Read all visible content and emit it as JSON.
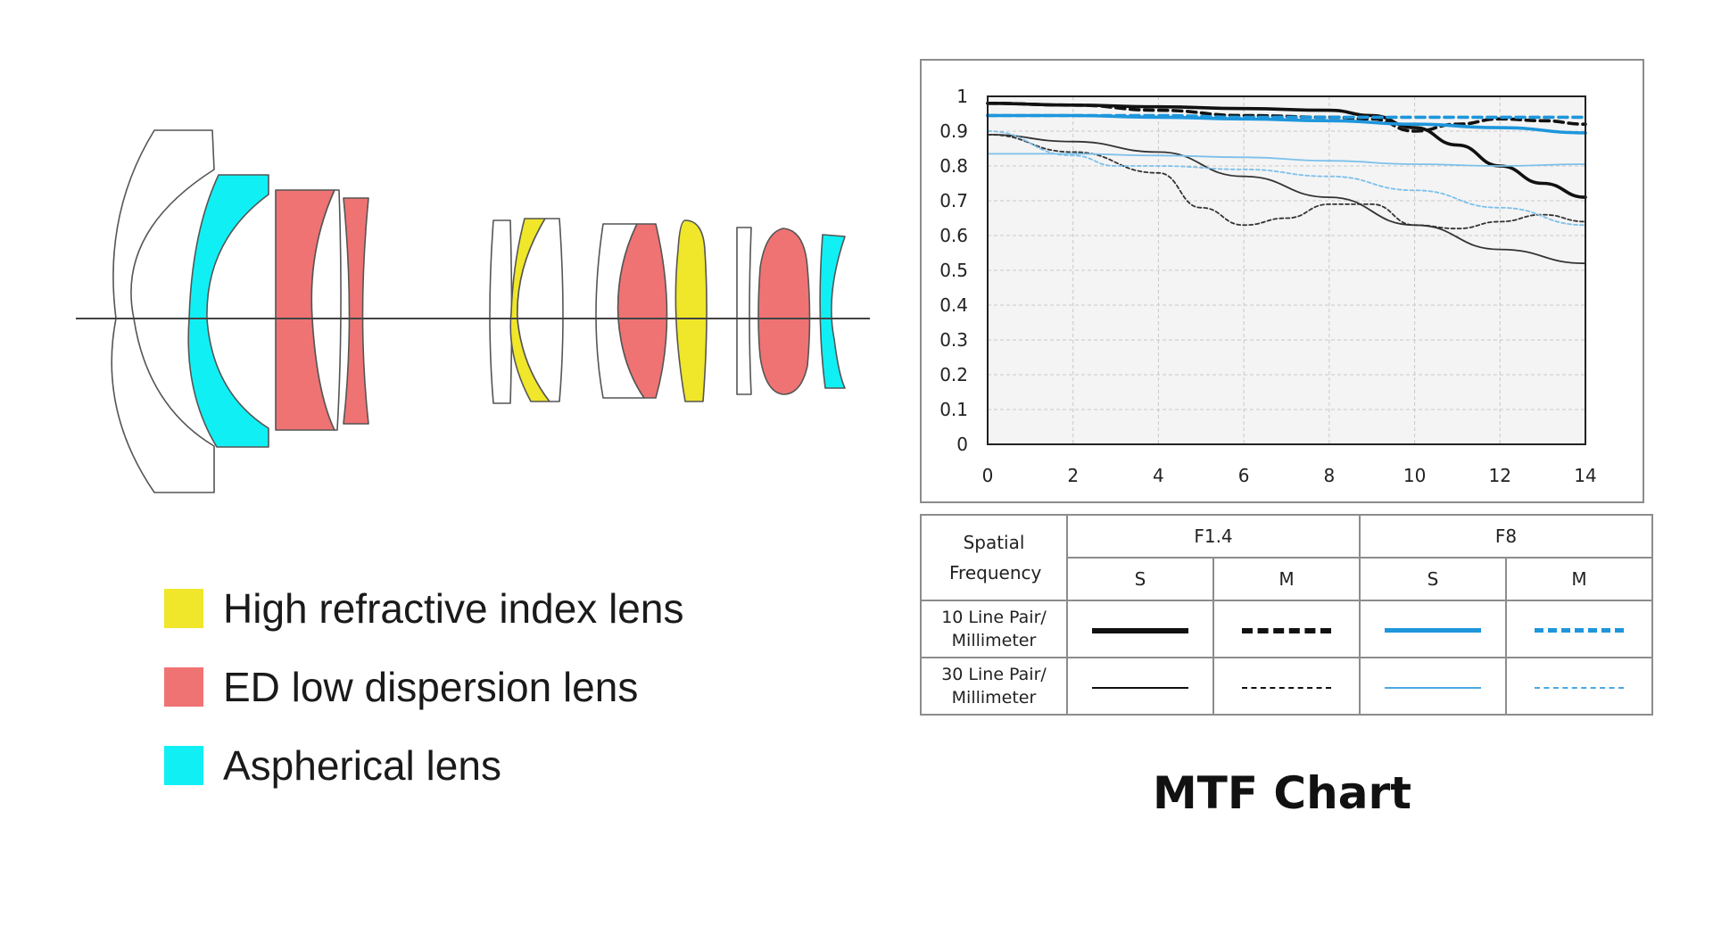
{
  "legend": [
    {
      "label": "High refractive index lens",
      "color": "#f0e62a"
    },
    {
      "label": "ED low dispersion lens",
      "color": "#ef7373"
    },
    {
      "label": "Aspherical lens",
      "color": "#10f0f4"
    }
  ],
  "chart_data": {
    "type": "line",
    "title": "MTF Chart",
    "xlabel": "",
    "ylabel": "",
    "xlim": [
      0,
      14
    ],
    "ylim": [
      0,
      1
    ],
    "x_ticks": [
      "0",
      "2",
      "4",
      "6",
      "8",
      "10",
      "12",
      "14"
    ],
    "y_ticks": [
      "0",
      "0.1",
      "0.2",
      "0.3",
      "0.4",
      "0.5",
      "0.6",
      "0.7",
      "0.8",
      "0.9",
      "1"
    ],
    "grid": true,
    "series": [
      {
        "aperture": "F1.4",
        "orientation": "S",
        "frequency": "10 Line Pair/ Millimeter",
        "color": "#111111",
        "style": "thick-solid",
        "x": [
          0,
          2,
          4,
          6,
          8,
          9,
          10,
          11,
          12,
          13,
          14
        ],
        "y": [
          0.98,
          0.975,
          0.97,
          0.965,
          0.96,
          0.945,
          0.91,
          0.86,
          0.8,
          0.75,
          0.71
        ]
      },
      {
        "aperture": "F1.4",
        "orientation": "M",
        "frequency": "10 Line Pair/ Millimeter",
        "color": "#111111",
        "style": "thick-dashed",
        "x": [
          0,
          2,
          4,
          6,
          8,
          9,
          10,
          11,
          12,
          13,
          14
        ],
        "y": [
          0.98,
          0.975,
          0.96,
          0.945,
          0.94,
          0.935,
          0.9,
          0.92,
          0.935,
          0.93,
          0.92
        ]
      },
      {
        "aperture": "F1.4",
        "orientation": "S",
        "frequency": "30 Line Pair/ Millimeter",
        "color": "#333333",
        "style": "thin-solid",
        "x": [
          0,
          2,
          4,
          6,
          8,
          10,
          12,
          14
        ],
        "y": [
          0.89,
          0.87,
          0.84,
          0.77,
          0.71,
          0.63,
          0.56,
          0.52
        ]
      },
      {
        "aperture": "F1.4",
        "orientation": "M",
        "frequency": "30 Line Pair/ Millimeter",
        "color": "#333333",
        "style": "thin-dashed",
        "x": [
          0,
          2,
          4,
          5,
          6,
          7,
          8,
          9,
          10,
          11,
          12,
          13,
          14
        ],
        "y": [
          0.89,
          0.84,
          0.78,
          0.68,
          0.63,
          0.65,
          0.69,
          0.69,
          0.63,
          0.62,
          0.64,
          0.66,
          0.64
        ]
      },
      {
        "aperture": "F8",
        "orientation": "S",
        "frequency": "10 Line Pair/ Millimeter",
        "color": "#1e96dc",
        "style": "thick-solid",
        "x": [
          0,
          2,
          4,
          6,
          8,
          10,
          12,
          14
        ],
        "y": [
          0.945,
          0.945,
          0.94,
          0.935,
          0.93,
          0.92,
          0.91,
          0.895
        ]
      },
      {
        "aperture": "F8",
        "orientation": "M",
        "frequency": "10 Line Pair/ Millimeter",
        "color": "#1e96dc",
        "style": "thick-dashed",
        "x": [
          0,
          2,
          4,
          6,
          8,
          10,
          12,
          14
        ],
        "y": [
          0.945,
          0.945,
          0.945,
          0.94,
          0.94,
          0.94,
          0.94,
          0.94
        ]
      },
      {
        "aperture": "F8",
        "orientation": "S",
        "frequency": "30 Line Pair/ Millimeter",
        "color": "#7cc0ea",
        "style": "thin-solid",
        "x": [
          0,
          2,
          4,
          6,
          8,
          10,
          12,
          14
        ],
        "y": [
          0.835,
          0.835,
          0.83,
          0.825,
          0.815,
          0.805,
          0.8,
          0.805
        ]
      },
      {
        "aperture": "F8",
        "orientation": "M",
        "frequency": "30 Line Pair/ Millimeter",
        "color": "#7cc0ea",
        "style": "thin-dashed",
        "x": [
          0,
          2,
          3,
          4,
          6,
          8,
          10,
          12,
          14
        ],
        "y": [
          0.9,
          0.83,
          0.8,
          0.8,
          0.79,
          0.77,
          0.73,
          0.68,
          0.63
        ]
      }
    ],
    "table": {
      "header": "Spatial Frequency",
      "apertures": [
        "F1.4",
        "F8"
      ],
      "orientations": [
        "S",
        "M",
        "S",
        "M"
      ],
      "rows": [
        "10 Line Pair/ Millimeter",
        "30 Line Pair/ Millimeter"
      ]
    }
  }
}
